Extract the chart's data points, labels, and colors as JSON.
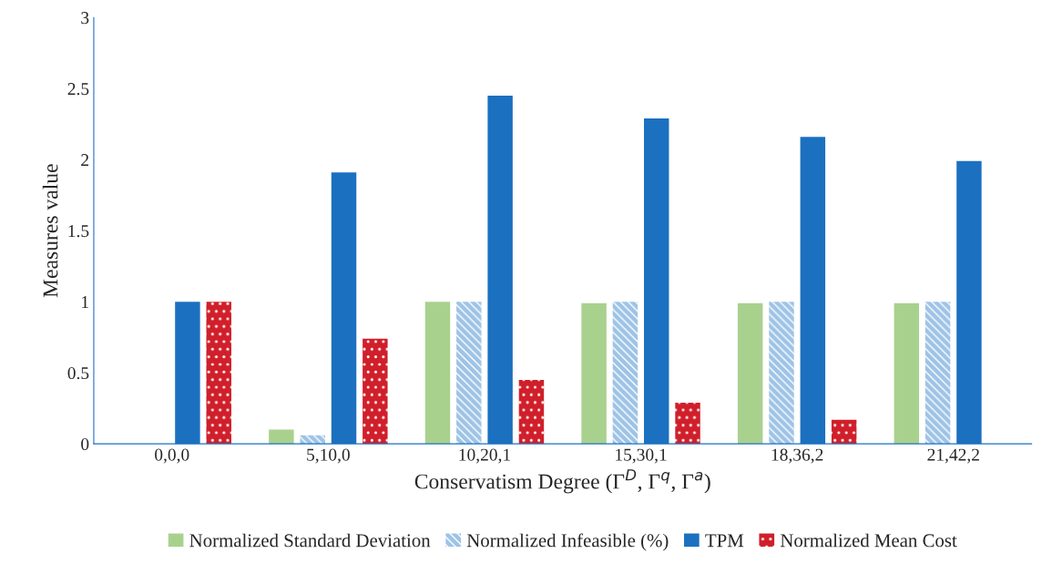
{
  "chart_data": {
    "type": "bar",
    "xlabel": "Conservatism Degree (Γ$^{D}$, Γ$^{q}$, Γ$^{a}$)",
    "ylabel": "Measures value",
    "categories": [
      "0,0,0",
      "5,10,0",
      "10,20,1",
      "15,30,1",
      "18,36,2",
      "21,42,2"
    ],
    "series": [
      {
        "name": "Normalized Standard Deviation",
        "color": "#a9d18e",
        "values": [
          0,
          0.1,
          1.0,
          0.99,
          0.99,
          0.99
        ]
      },
      {
        "name": "Normalized Infeasible (%)",
        "color": "#9dc3e6",
        "values": [
          0,
          0.06,
          1.0,
          1.0,
          1.0,
          1.0
        ]
      },
      {
        "name": "TPM",
        "color": "#1b70c0",
        "values": [
          1.0,
          1.91,
          2.45,
          2.29,
          2.16,
          1.99
        ]
      },
      {
        "name": "Normalized Mean Cost",
        "color": "#d01f2a",
        "values": [
          1.0,
          0.74,
          0.45,
          0.29,
          0.17,
          0
        ]
      }
    ],
    "ylim": [
      0,
      3
    ],
    "yticks": [
      0,
      0.5,
      1,
      1.5,
      2,
      2.5,
      3
    ],
    "grid": false,
    "legend": "bottom"
  }
}
